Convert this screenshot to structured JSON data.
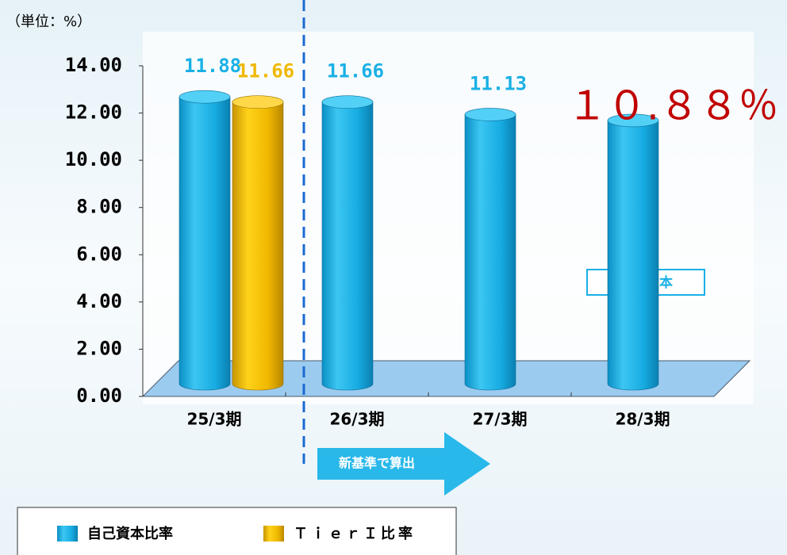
{
  "chart_data": {
    "type": "bar",
    "unit_label": "（単位：%）",
    "categories": [
      "25/3期",
      "26/3期",
      "27/3期",
      "28/3期"
    ],
    "series": [
      {
        "name": "自己資本比率",
        "color": "#1ab0e6",
        "values": [
          11.88,
          11.66,
          11.13,
          10.88
        ],
        "value_labels": [
          "11.88",
          "11.66",
          "11.13",
          "１０.８８％"
        ]
      },
      {
        "name": "ＴｉｅｒＩ比率",
        "color": "#f0b800",
        "values": [
          11.66,
          null,
          null,
          null
        ],
        "value_labels": [
          "11.66",
          null,
          null,
          null
        ]
      }
    ],
    "ylim": [
      0,
      14
    ],
    "yticks": [
      {
        "value": 0,
        "label": "0.00"
      },
      {
        "value": 2,
        "label": "2.00"
      },
      {
        "value": 4,
        "label": "4.00"
      },
      {
        "value": 6,
        "label": "6.00"
      },
      {
        "value": 8,
        "label": "8.00"
      },
      {
        "value": 10,
        "label": "10.00"
      },
      {
        "value": 12,
        "label": "12.00"
      },
      {
        "value": 14,
        "label": "14.00"
      }
    ],
    "annotations": [
      "新基準で算出",
      "コア資本"
    ]
  }
}
